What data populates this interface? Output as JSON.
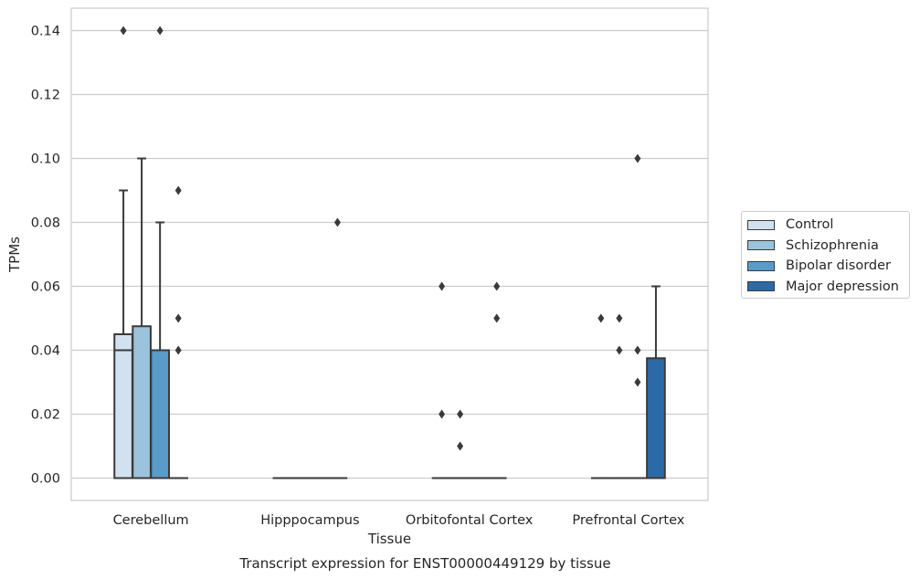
{
  "chart_data": {
    "type": "box",
    "title": "Transcript expression for ENST00000449129 by tissue",
    "xlabel": "Tissue",
    "ylabel": "TPMs",
    "ylim": [
      -0.007,
      0.147
    ],
    "yticks": [
      "0.00",
      "0.02",
      "0.04",
      "0.06",
      "0.08",
      "0.10",
      "0.12",
      "0.14"
    ],
    "categories": [
      "Cerebellum",
      "Hipppocampus",
      "Orbitofontal Cortex",
      "Prefrontal Cortex"
    ],
    "grid": true,
    "legend_position": "right",
    "series": [
      {
        "name": "Control",
        "color": "#d1e1f0",
        "boxes": [
          {
            "q1": 0.0,
            "median": 0.04,
            "q3": 0.045,
            "whisker_low": 0.0,
            "whisker_high": 0.09,
            "outliers": [
              0.14
            ]
          },
          {
            "q1": 0.0,
            "median": 0.0,
            "q3": 0.0,
            "whisker_low": 0.0,
            "whisker_high": 0.0,
            "outliers": []
          },
          {
            "q1": 0.0,
            "median": 0.0,
            "q3": 0.0,
            "whisker_low": 0.0,
            "whisker_high": 0.0,
            "outliers": [
              0.06,
              0.02
            ]
          },
          {
            "q1": 0.0,
            "median": 0.0,
            "q3": 0.0,
            "whisker_low": 0.0,
            "whisker_high": 0.0,
            "outliers": [
              0.05
            ]
          }
        ]
      },
      {
        "name": "Schizophrenia",
        "color": "#9cc3dc",
        "boxes": [
          {
            "q1": 0.0,
            "median": 0.0,
            "q3": 0.0475,
            "whisker_low": 0.0,
            "whisker_high": 0.1,
            "outliers": []
          },
          {
            "q1": 0.0,
            "median": 0.0,
            "q3": 0.0,
            "whisker_low": 0.0,
            "whisker_high": 0.0,
            "outliers": []
          },
          {
            "q1": 0.0,
            "median": 0.0,
            "q3": 0.0,
            "whisker_low": 0.0,
            "whisker_high": 0.0,
            "outliers": [
              0.02,
              0.01
            ]
          },
          {
            "q1": 0.0,
            "median": 0.0,
            "q3": 0.0,
            "whisker_low": 0.0,
            "whisker_high": 0.0,
            "outliers": [
              0.05,
              0.04
            ]
          }
        ]
      },
      {
        "name": "Bipolar disorder",
        "color": "#5a9bc9",
        "boxes": [
          {
            "q1": 0.0,
            "median": 0.0,
            "q3": 0.04,
            "whisker_low": 0.0,
            "whisker_high": 0.08,
            "outliers": [
              0.14
            ]
          },
          {
            "q1": 0.0,
            "median": 0.0,
            "q3": 0.0,
            "whisker_low": 0.0,
            "whisker_high": 0.0,
            "outliers": []
          },
          {
            "q1": 0.0,
            "median": 0.0,
            "q3": 0.0,
            "whisker_low": 0.0,
            "whisker_high": 0.0,
            "outliers": []
          },
          {
            "q1": 0.0,
            "median": 0.0,
            "q3": 0.0,
            "whisker_low": 0.0,
            "whisker_high": 0.0,
            "outliers": [
              0.1,
              0.04,
              0.03
            ]
          }
        ]
      },
      {
        "name": "Major depression",
        "color": "#2b6aa6",
        "boxes": [
          {
            "q1": 0.0,
            "median": 0.0,
            "q3": 0.0,
            "whisker_low": 0.0,
            "whisker_high": 0.0,
            "outliers": [
              0.09,
              0.05,
              0.04
            ]
          },
          {
            "q1": 0.0,
            "median": 0.0,
            "q3": 0.0,
            "whisker_low": 0.0,
            "whisker_high": 0.0,
            "outliers": [
              0.08
            ]
          },
          {
            "q1": 0.0,
            "median": 0.0,
            "q3": 0.0,
            "whisker_low": 0.0,
            "whisker_high": 0.0,
            "outliers": [
              0.06,
              0.05
            ]
          },
          {
            "q1": 0.0,
            "median": 0.0,
            "q3": 0.0375,
            "whisker_low": 0.0,
            "whisker_high": 0.06,
            "outliers": []
          }
        ]
      }
    ]
  }
}
